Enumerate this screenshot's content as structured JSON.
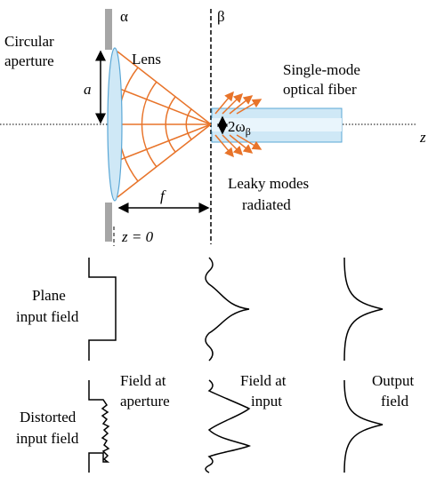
{
  "labels": {
    "alpha": "α",
    "beta": "β",
    "circular_aperture": [
      "Circular",
      "aperture"
    ],
    "lens": "Lens",
    "a": "a",
    "fiber": [
      "Single-mode",
      "optical fiber"
    ],
    "waist": {
      "main": "2ω",
      "sub": "β"
    },
    "z": "z",
    "f": "f",
    "leaky": [
      "Leaky modes",
      "radiated"
    ],
    "z0": "z = 0",
    "plane": [
      "Plane",
      "input field"
    ],
    "field_aperture": [
      "Field at",
      "aperture"
    ],
    "field_input": [
      "Field at",
      "input"
    ],
    "output": [
      "Output",
      "field"
    ],
    "distorted": [
      "Distorted",
      "input field"
    ]
  }
}
